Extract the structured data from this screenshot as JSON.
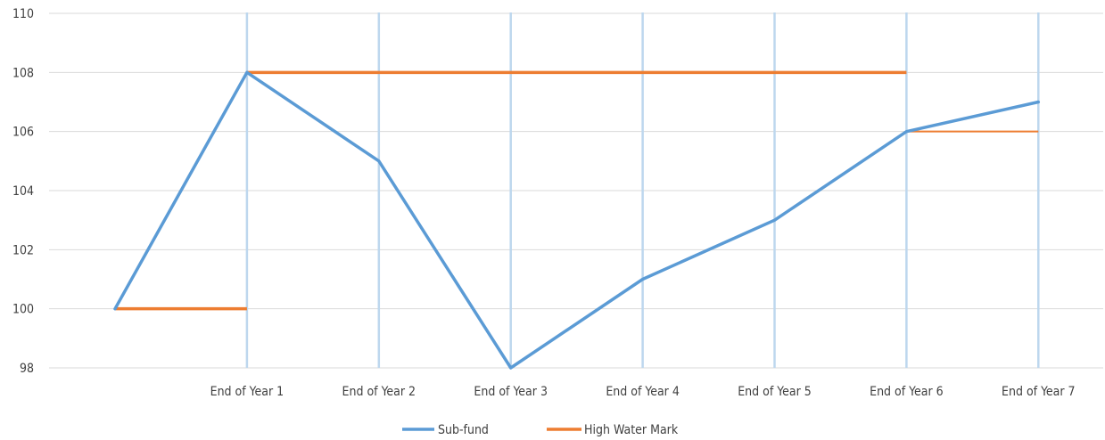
{
  "chart_data": {
    "type": "line",
    "categories": [
      "",
      "End of Year 1",
      "End of Year 2",
      "End of Year 3",
      "End of Year 4",
      "End of Year 5",
      "End of Year 6",
      "End of Year 7"
    ],
    "ylim": [
      98,
      110
    ],
    "yticks": [
      98,
      100,
      102,
      104,
      106,
      108,
      110
    ],
    "grid": true,
    "legend": "bottom-center",
    "series": [
      {
        "name": "Sub-fund",
        "color": "#5B9BD5",
        "values": [
          100,
          108,
          105,
          98,
          101,
          103,
          106,
          107
        ]
      }
    ],
    "high_water_mark": {
      "name": "High Water Mark",
      "color": "#ED7D31",
      "segments": [
        {
          "from": 0,
          "to": 1,
          "value": 100
        },
        {
          "from": 1,
          "to": 6,
          "value": 108
        },
        {
          "from": 6,
          "to": 7,
          "value": 106
        }
      ]
    },
    "year_marker_color": "#BDD7EE"
  }
}
